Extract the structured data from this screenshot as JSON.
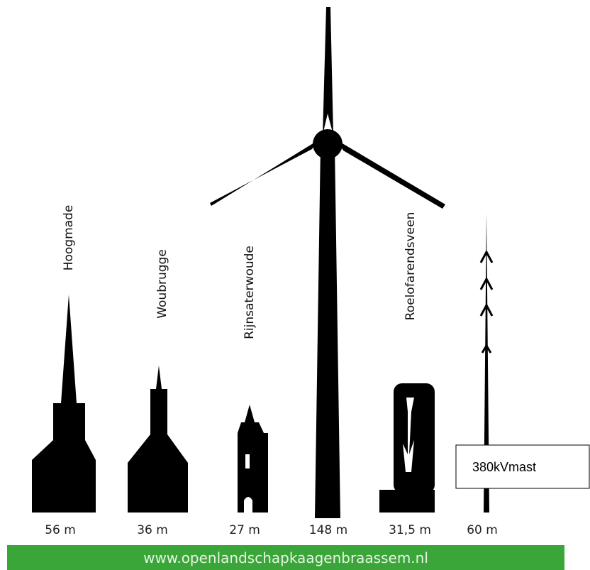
{
  "structures": [
    {
      "name": "Hoogmade",
      "height": "56 m"
    },
    {
      "name": "Woubrugge",
      "height": "36 m"
    },
    {
      "name": "Rijnsaterwoude",
      "height": "27 m"
    },
    {
      "height": "148 m"
    },
    {
      "name": "Roelofarendsveen",
      "height": "31,5 m"
    },
    {
      "height": "60 m"
    }
  ],
  "callout": "380kVmast",
  "footer": "www.openlandschapkaagenbraassem.nl"
}
